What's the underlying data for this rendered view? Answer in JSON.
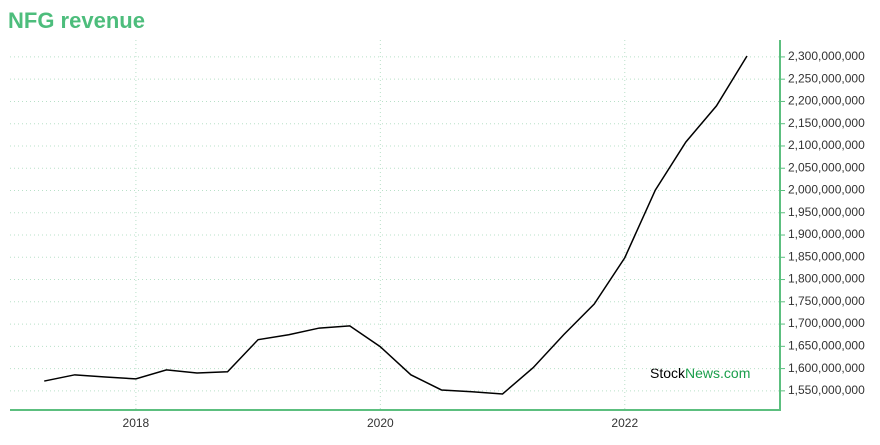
{
  "chart_data": {
    "type": "line",
    "title": "NFG revenue",
    "x": [
      2017.25,
      2017.5,
      2017.75,
      2018,
      2018.25,
      2018.5,
      2018.75,
      2019,
      2019.25,
      2019.5,
      2019.75,
      2020,
      2020.25,
      2020.5,
      2020.75,
      2021,
      2021.25,
      2021.5,
      2021.75,
      2022,
      2022.25,
      2022.5,
      2022.75,
      2023
    ],
    "values": [
      1572000000,
      1586000000,
      1581000000,
      1577000000,
      1597000000,
      1590000000,
      1593000000,
      1665000000,
      1676000000,
      1691000000,
      1696000000,
      1649000000,
      1586000000,
      1552000000,
      1548000000,
      1543000000,
      1602000000,
      1676000000,
      1745000000,
      1849000000,
      2001000000,
      2109000000,
      2190000000,
      2302000000
    ],
    "color": "#000000",
    "xlim": [
      2016.97,
      2023.27
    ],
    "xticks": [
      2018,
      2020,
      2022
    ],
    "ylim": [
      1507000000,
      2338000000
    ],
    "yticks": [
      {
        "value": 1550000000,
        "label": "1,550,000,000"
      },
      {
        "value": 1600000000,
        "label": "1,600,000,000"
      },
      {
        "value": 1650000000,
        "label": "1,650,000,000"
      },
      {
        "value": 1700000000,
        "label": "1,700,000,000"
      },
      {
        "value": 1750000000,
        "label": "1,750,000,000"
      },
      {
        "value": 1800000000,
        "label": "1,800,000,000"
      },
      {
        "value": 1850000000,
        "label": "1,850,000,000"
      },
      {
        "value": 1900000000,
        "label": "1,900,000,000"
      },
      {
        "value": 1950000000,
        "label": "1,950,000,000"
      },
      {
        "value": 2000000000,
        "label": "2,000,000,000"
      },
      {
        "value": 2050000000,
        "label": "2,050,000,000"
      },
      {
        "value": 2100000000,
        "label": "2,100,000,000"
      },
      {
        "value": 2150000000,
        "label": "2,150,000,000"
      },
      {
        "value": 2200000000,
        "label": "2,200,000,000"
      },
      {
        "value": 2250000000,
        "label": "2,250,000,000"
      },
      {
        "value": 2300000000,
        "label": "2,300,000,000"
      }
    ],
    "grid": true,
    "watermark": [
      "Stock",
      "News",
      ".com"
    ]
  }
}
